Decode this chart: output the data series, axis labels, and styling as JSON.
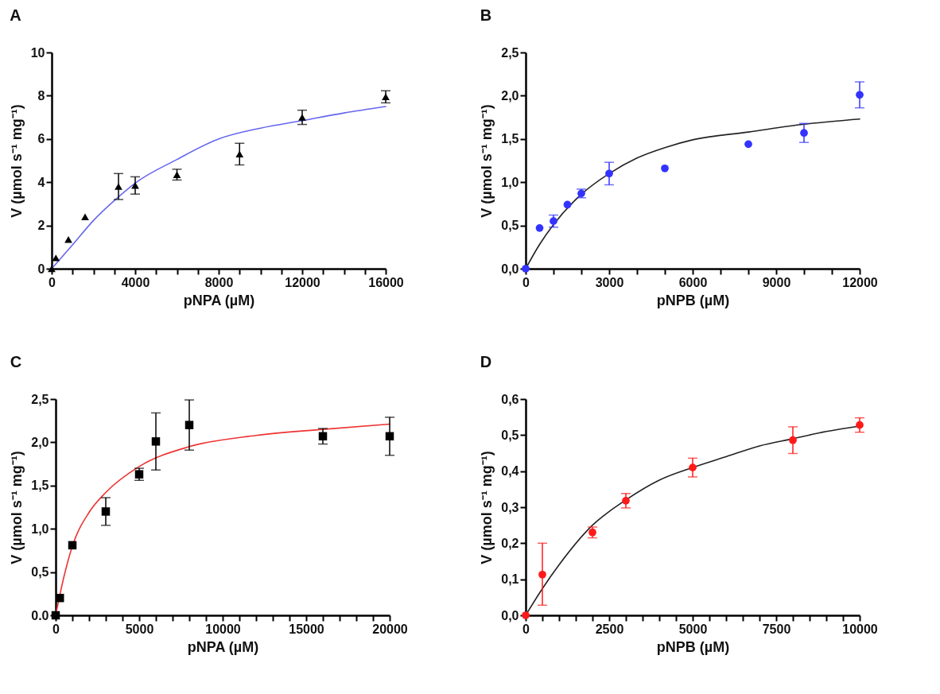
{
  "chart_data": [
    {
      "type": "scatter",
      "title": "A",
      "xlabel": "pNPA (µM)",
      "ylabel": "V (µmol s⁻¹ mg⁻¹)",
      "grid": false,
      "xlim": [
        0,
        16000
      ],
      "xticks": [
        0,
        {
          "value": 1000,
          "label": null
        },
        {
          "value": 2000,
          "label": null
        },
        {
          "value": 3000,
          "label": null
        },
        4000,
        {
          "value": 5000,
          "label": null
        },
        {
          "value": 6000,
          "label": null
        },
        {
          "value": 7000,
          "label": null
        },
        8000,
        {
          "value": 9000,
          "label": null
        },
        {
          "value": 10000,
          "label": null
        },
        {
          "value": 11000,
          "label": null
        },
        12000,
        {
          "value": 13000,
          "label": null
        },
        {
          "value": 14000,
          "label": null
        },
        {
          "value": 15000,
          "label": null
        },
        16000
      ],
      "ylim": [
        0,
        10
      ],
      "yticks": [
        0,
        2,
        4,
        6,
        8,
        10
      ],
      "series": [
        {
          "marker": "triangle",
          "color": "#000000",
          "x": [
            0,
            200,
            800,
            1600,
            3200,
            4000,
            6000,
            9000,
            12000,
            16000
          ],
          "values": [
            0,
            0.5,
            1.35,
            2.4,
            3.8,
            3.85,
            4.35,
            5.3,
            7.0,
            7.95
          ],
          "errors": [
            null,
            null,
            null,
            null,
            0.6,
            0.4,
            0.25,
            0.5,
            0.33,
            0.28
          ]
        },
        {
          "type": "line",
          "color": "#6666ee",
          "x": [
            0,
            1000,
            2000,
            3000,
            4000,
            6000,
            8000,
            10000,
            12000,
            14000,
            16000
          ],
          "values": [
            0,
            1.1,
            2.23,
            3.15,
            3.96,
            5.05,
            6.0,
            6.5,
            6.85,
            7.2,
            7.5
          ]
        }
      ]
    },
    {
      "type": "scatter",
      "title": "B",
      "xlabel": "pNPB (µM)",
      "ylabel": "V (µmol s⁻¹ mg⁻¹)",
      "grid": false,
      "xlim": [
        0,
        12000
      ],
      "xticks": [
        0,
        {
          "value": 1000,
          "label": null
        },
        {
          "value": 2000,
          "label": null
        },
        3000,
        {
          "value": 4000,
          "label": null
        },
        {
          "value": 5000,
          "label": null
        },
        6000,
        {
          "value": 7000,
          "label": null
        },
        {
          "value": 8000,
          "label": null
        },
        9000,
        {
          "value": 10000,
          "label": null
        },
        {
          "value": 11000,
          "label": null
        },
        12000
      ],
      "ylim": [
        0,
        2.5
      ],
      "yticks": [
        {
          "value": 0,
          "label": "0,0"
        },
        {
          "value": 0.5,
          "label": "0,5"
        },
        {
          "value": 1,
          "label": "1,0"
        },
        {
          "value": 1.5,
          "label": "1,5"
        },
        {
          "value": 2,
          "label": "2,0"
        },
        {
          "value": 2.5,
          "label": "2,5"
        }
      ],
      "series": [
        {
          "marker": "circle",
          "color": "#3333ff",
          "x": [
            0,
            500,
            1000,
            1500,
            2000,
            3000,
            5000,
            8000,
            10000,
            12000
          ],
          "values": [
            0,
            0.47,
            0.55,
            0.74,
            0.87,
            1.1,
            1.16,
            1.44,
            1.57,
            2.01
          ],
          "errors": [
            null,
            null,
            0.07,
            null,
            0.05,
            0.13,
            null,
            null,
            0.11,
            0.15
          ]
        },
        {
          "type": "line",
          "color": "#222222",
          "x": [
            0,
            500,
            1000,
            2000,
            3000,
            4000,
            5000,
            6000,
            8000,
            10000,
            12000
          ],
          "values": [
            0,
            0.28,
            0.51,
            0.86,
            1.1,
            1.28,
            1.4,
            1.49,
            1.58,
            1.67,
            1.73
          ]
        }
      ]
    },
    {
      "type": "scatter",
      "title": "C",
      "xlabel": "pNPA (µM)",
      "ylabel": "V (µmol s⁻¹ mg⁻¹)",
      "grid": false,
      "xlim": [
        0,
        20000
      ],
      "xticks": [
        0,
        {
          "value": 1000,
          "label": null
        },
        {
          "value": 2000,
          "label": null
        },
        {
          "value": 3000,
          "label": null
        },
        {
          "value": 4000,
          "label": null
        },
        5000,
        {
          "value": 6000,
          "label": null
        },
        {
          "value": 7000,
          "label": null
        },
        {
          "value": 8000,
          "label": null
        },
        {
          "value": 9000,
          "label": null
        },
        10000,
        {
          "value": 11000,
          "label": null
        },
        {
          "value": 12000,
          "label": null
        },
        {
          "value": 13000,
          "label": null
        },
        {
          "value": 14000,
          "label": null
        },
        15000,
        {
          "value": 16000,
          "label": null
        },
        {
          "value": 17000,
          "label": null
        },
        {
          "value": 18000,
          "label": null
        },
        {
          "value": 19000,
          "label": null
        },
        20000
      ],
      "ylim": [
        0,
        2.5
      ],
      "yticks": [
        {
          "value": 0,
          "label": "0.0"
        },
        {
          "value": 0.5,
          "label": "0,5"
        },
        {
          "value": 1,
          "label": "1,0"
        },
        {
          "value": 1.5,
          "label": "1,5"
        },
        {
          "value": 2,
          "label": "2,0"
        },
        {
          "value": 2.5,
          "label": "2,5"
        }
      ],
      "series": [
        {
          "marker": "square",
          "color": "#000000",
          "x": [
            0,
            250,
            1000,
            3000,
            5000,
            6000,
            8000,
            16000,
            20000
          ],
          "values": [
            0,
            0.2,
            0.81,
            1.2,
            1.63,
            2.01,
            2.2,
            2.07,
            2.07
          ],
          "errors": [
            null,
            null,
            null,
            0.16,
            0.07,
            0.33,
            0.29,
            0.09,
            0.22
          ]
        },
        {
          "type": "line",
          "color": "#ee3333",
          "x": [
            0,
            500,
            1000,
            2000,
            3000,
            5000,
            8000,
            12000,
            16000,
            20000
          ],
          "values": [
            0,
            0.45,
            0.8,
            1.19,
            1.42,
            1.72,
            1.95,
            2.08,
            2.15,
            2.21
          ]
        }
      ]
    },
    {
      "type": "scatter",
      "title": "D",
      "xlabel": "pNPB (µM)",
      "ylabel": "V (µmol s⁻¹ mg⁻¹)",
      "grid": false,
      "xlim": [
        0,
        10000
      ],
      "xticks": [
        0,
        {
          "value": 500,
          "label": null
        },
        {
          "value": 1000,
          "label": null
        },
        {
          "value": 1500,
          "label": null
        },
        {
          "value": 2000,
          "label": null
        },
        2500,
        {
          "value": 3000,
          "label": null
        },
        {
          "value": 3500,
          "label": null
        },
        {
          "value": 4000,
          "label": null
        },
        {
          "value": 4500,
          "label": null
        },
        5000,
        {
          "value": 5500,
          "label": null
        },
        {
          "value": 6000,
          "label": null
        },
        {
          "value": 6500,
          "label": null
        },
        {
          "value": 7000,
          "label": null
        },
        7500,
        {
          "value": 8000,
          "label": null
        },
        {
          "value": 8500,
          "label": null
        },
        {
          "value": 9000,
          "label": null
        },
        {
          "value": 9500,
          "label": null
        },
        10000
      ],
      "ylim": [
        0,
        0.6
      ],
      "yticks": [
        {
          "value": 0,
          "label": "0,0"
        },
        {
          "value": 0.1,
          "label": "0,1"
        },
        {
          "value": 0.2,
          "label": "0,2"
        },
        {
          "value": 0.3,
          "label": "0,3"
        },
        {
          "value": 0.4,
          "label": "0,4"
        },
        {
          "value": 0.5,
          "label": "0,5"
        },
        {
          "value": 0.6,
          "label": "0,6"
        }
      ],
      "series": [
        {
          "marker": "circle",
          "color": "#ff1a1a",
          "x": [
            0,
            500,
            2000,
            3000,
            5000,
            8000,
            10000
          ],
          "values": [
            0,
            0.113,
            0.23,
            0.318,
            0.41,
            0.486,
            0.528
          ],
          "errors": [
            null,
            [
              0.028,
              0.2
            ],
            0.015,
            0.02,
            0.026,
            0.037,
            0.02
          ]
        },
        {
          "type": "line",
          "color": "#222222",
          "x": [
            0,
            500,
            1000,
            2000,
            3000,
            4000,
            5000,
            6000,
            7000,
            8000,
            9000,
            10000
          ],
          "values": [
            0,
            0.074,
            0.14,
            0.25,
            0.32,
            0.375,
            0.41,
            0.44,
            0.47,
            0.49,
            0.51,
            0.525
          ]
        }
      ]
    }
  ]
}
